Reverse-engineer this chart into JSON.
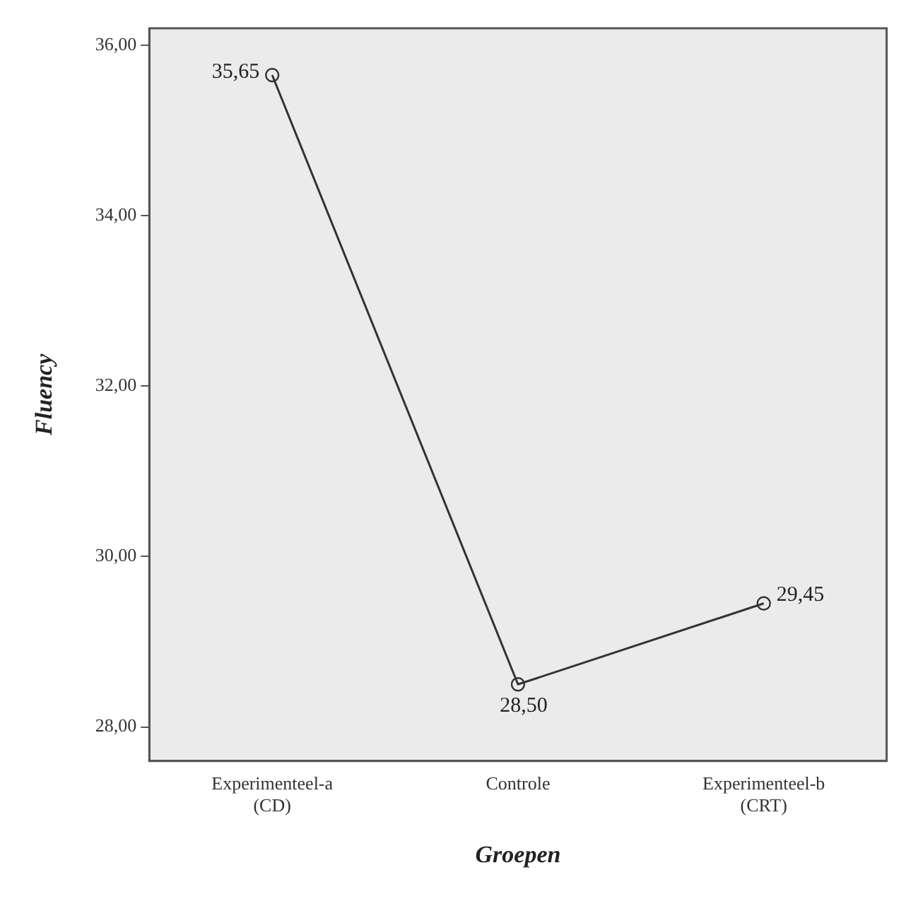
{
  "chart_data": {
    "type": "line",
    "xlabel": "Groepen",
    "ylabel": "Fluency",
    "categories": [
      "Experimenteel-a\n(CD)",
      "Controle",
      "Experimenteel-b\n(CRT)"
    ],
    "series": [
      {
        "color": "#333333",
        "values": [
          35.65,
          28.5,
          29.45
        ],
        "value_labels": [
          "35,65",
          "28,50",
          "29,45"
        ]
      }
    ],
    "ylim": [
      27.6,
      36.2
    ],
    "yticks": [
      {
        "value": 28,
        "label": "28,00"
      },
      {
        "value": 30,
        "label": "30,00"
      },
      {
        "value": 32,
        "label": "32,00"
      },
      {
        "value": 34,
        "label": "34,00"
      },
      {
        "value": 36,
        "label": "36,00"
      }
    ],
    "grid": false,
    "legend": false,
    "marker": "circle",
    "line_style": "solid"
  }
}
